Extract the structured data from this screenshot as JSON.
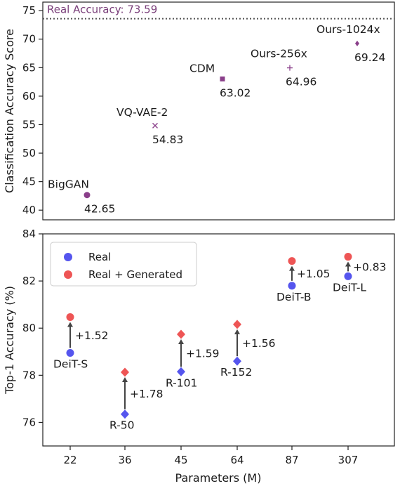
{
  "chart_data": [
    {
      "type": "scatter",
      "ylabel": "Classification Accuracy Score",
      "xlabel": "",
      "ylim": [
        38.3,
        76.5
      ],
      "yticks": [
        40,
        45,
        50,
        55,
        60,
        65,
        70,
        75
      ],
      "grid": false,
      "reference_line": {
        "label": "Real Accuracy: 73.59",
        "value": 73.59,
        "style": "dotted"
      },
      "points": [
        {
          "name": "BigGAN",
          "value": 42.65,
          "value_label": "42.65",
          "marker": "circle",
          "color": "#8a3f8a"
        },
        {
          "name": "VQ-VAE-2",
          "value": 54.83,
          "value_label": "54.83",
          "marker": "x",
          "color": "#8a3f8a"
        },
        {
          "name": "CDM",
          "value": 63.02,
          "value_label": "63.02",
          "marker": "square",
          "color": "#8a3f8a"
        },
        {
          "name": "Ours-256x",
          "value": 64.96,
          "value_label": "64.96",
          "marker": "plus",
          "color": "#8a3f8a"
        },
        {
          "name": "Ours-1024x",
          "value": 69.24,
          "value_label": "69.24",
          "marker": "diamond",
          "color": "#8a3f8a"
        }
      ]
    },
    {
      "type": "scatter",
      "xlabel": "Parameters (M)",
      "ylabel": "Top-1 Accuracy (%)",
      "ylim": [
        75,
        84
      ],
      "yticks": [
        76,
        78,
        80,
        82,
        84
      ],
      "categories": [
        "22",
        "36",
        "45",
        "64",
        "87",
        "307"
      ],
      "legend_position": "top-left",
      "grid": false,
      "series": [
        {
          "name": "Real",
          "color": "#5555ee",
          "values": [
            78.95,
            76.35,
            78.15,
            78.6,
            81.8,
            82.2
          ]
        },
        {
          "name": "Real + Generated",
          "color": "#ee5555",
          "values": [
            80.47,
            78.13,
            79.74,
            80.16,
            82.85,
            83.03
          ]
        }
      ],
      "models": [
        {
          "name": "DeiT-S",
          "category": "22",
          "marker": "circle",
          "gain": "+1.52"
        },
        {
          "name": "R-50",
          "category": "36",
          "marker": "diamond",
          "gain": "+1.78"
        },
        {
          "name": "R-101",
          "category": "45",
          "marker": "diamond",
          "gain": "+1.59"
        },
        {
          "name": "R-152",
          "category": "64",
          "marker": "diamond",
          "gain": "+1.56"
        },
        {
          "name": "DeiT-B",
          "category": "87",
          "marker": "circle",
          "gain": "+1.05"
        },
        {
          "name": "DeiT-L",
          "category": "307",
          "marker": "circle",
          "gain": "+0.83"
        }
      ]
    }
  ]
}
